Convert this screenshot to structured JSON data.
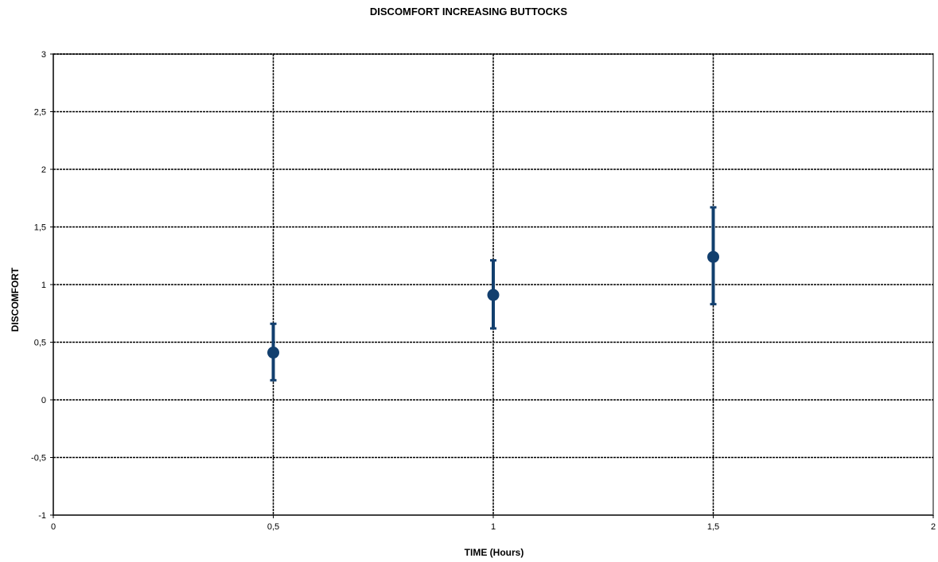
{
  "chart_data": {
    "type": "scatter",
    "title": "DISCOMFORT INCREASING BUTTOCKS",
    "xlabel": "TIME (Hours)",
    "ylabel": "DISCOMFORT",
    "xlim": [
      0,
      2
    ],
    "ylim": [
      -1,
      3
    ],
    "x_ticks": [
      "0",
      "0,5",
      "1",
      "1,5",
      "2"
    ],
    "x_tick_values": [
      0,
      0.5,
      1,
      1.5,
      2
    ],
    "y_ticks": [
      "-1",
      "-0,5",
      "0",
      "0,5",
      "1",
      "1,5",
      "2",
      "2,5",
      "3"
    ],
    "y_tick_values": [
      -1,
      -0.5,
      0,
      0.5,
      1,
      1.5,
      2,
      2.5,
      3
    ],
    "grid": true,
    "series": [
      {
        "points": [
          {
            "x": 0.5,
            "y": 0.41,
            "y_low": 0.17,
            "y_high": 0.66
          },
          {
            "x": 1.0,
            "y": 0.91,
            "y_low": 0.62,
            "y_high": 1.21
          },
          {
            "x": 1.5,
            "y": 1.24,
            "y_low": 0.83,
            "y_high": 1.67
          }
        ]
      }
    ],
    "colors": {
      "marker": "#123f6e",
      "errorbar": "#123f6e",
      "grid": "#000000",
      "frame": "#808080"
    }
  }
}
